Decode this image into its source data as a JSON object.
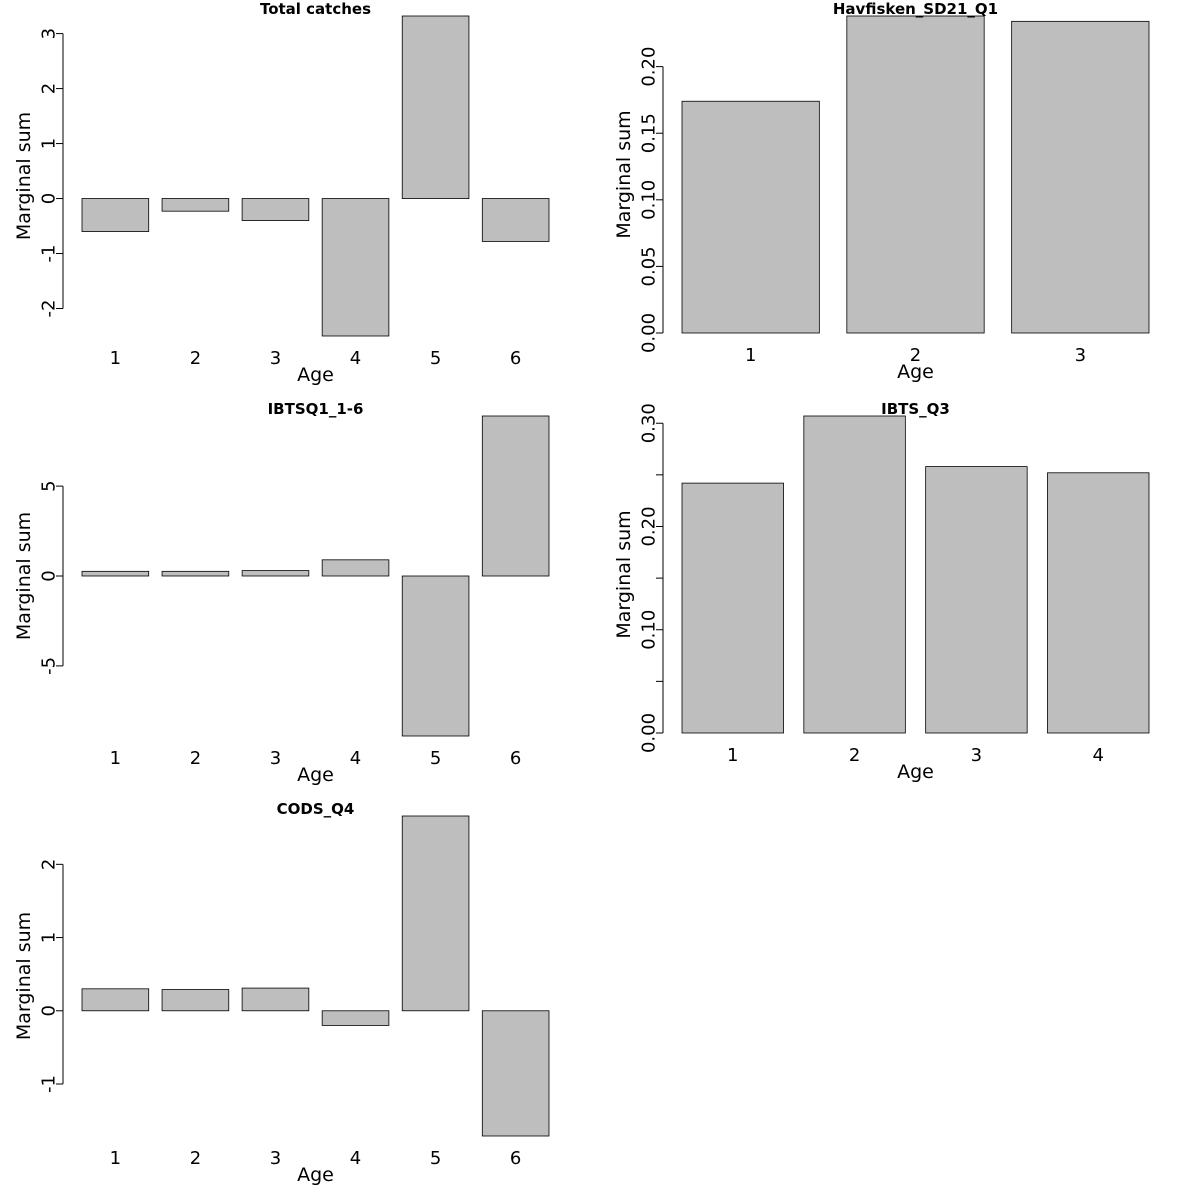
{
  "chart_data": [
    {
      "type": "bar",
      "title": "Total catches",
      "xlabel": "Age",
      "ylabel": "Marginal sum",
      "categories": [
        "1",
        "2",
        "3",
        "4",
        "5",
        "6"
      ],
      "values": [
        -0.6,
        -0.23,
        -0.4,
        -2.5,
        3.32,
        -0.78
      ],
      "ylim": [
        -2.5,
        3.32
      ],
      "yticks": [
        -2,
        -1,
        0,
        1,
        2,
        3
      ],
      "ytick_labels": [
        "-2",
        "-1",
        "0",
        "1",
        "2",
        "3"
      ]
    },
    {
      "type": "bar",
      "title": "Havfisken_SD21_Q1",
      "xlabel": "Age",
      "ylabel": "Marginal sum",
      "categories": [
        "1",
        "2",
        "3"
      ],
      "values": [
        0.174,
        0.238,
        0.234
      ],
      "ylim": [
        0,
        0.238
      ],
      "yticks": [
        0,
        0.05,
        0.1,
        0.15,
        0.2
      ],
      "ytick_labels": [
        "0.00",
        "0.05",
        "0.10",
        "0.15",
        "0.20"
      ]
    },
    {
      "type": "bar",
      "title": "IBTSQ1_1-6",
      "xlabel": "Age",
      "ylabel": "Marginal sum",
      "categories": [
        "1",
        "2",
        "3",
        "4",
        "5",
        "6"
      ],
      "values": [
        0.26,
        0.26,
        0.3,
        0.9,
        -8.9,
        8.9
      ],
      "ylim": [
        -8.9,
        8.9
      ],
      "yticks": [
        -5,
        0,
        5
      ],
      "ytick_labels": [
        "-5",
        "0",
        "5"
      ]
    },
    {
      "type": "bar",
      "title": "IBTS_Q3",
      "xlabel": "Age",
      "ylabel": "Marginal sum",
      "categories": [
        "1",
        "2",
        "3",
        "4"
      ],
      "values": [
        0.242,
        0.307,
        0.258,
        0.252
      ],
      "ylim": [
        0,
        0.307
      ],
      "yticks": [
        0,
        0.05,
        0.1,
        0.15,
        0.2,
        0.25,
        0.3
      ],
      "ytick_labels": [
        "0.00",
        "",
        "0.10",
        "",
        "0.20",
        "",
        "0.30"
      ]
    },
    {
      "type": "bar",
      "title": "CODS_Q4",
      "xlabel": "Age",
      "ylabel": "Marginal sum",
      "categories": [
        "1",
        "2",
        "3",
        "4",
        "5",
        "6"
      ],
      "values": [
        0.3,
        0.29,
        0.31,
        -0.2,
        2.66,
        -1.71
      ],
      "ylim": [
        -1.71,
        2.66
      ],
      "yticks": [
        -1,
        0,
        1,
        2
      ],
      "ytick_labels": [
        "-1",
        "0",
        "1",
        "2"
      ]
    }
  ]
}
